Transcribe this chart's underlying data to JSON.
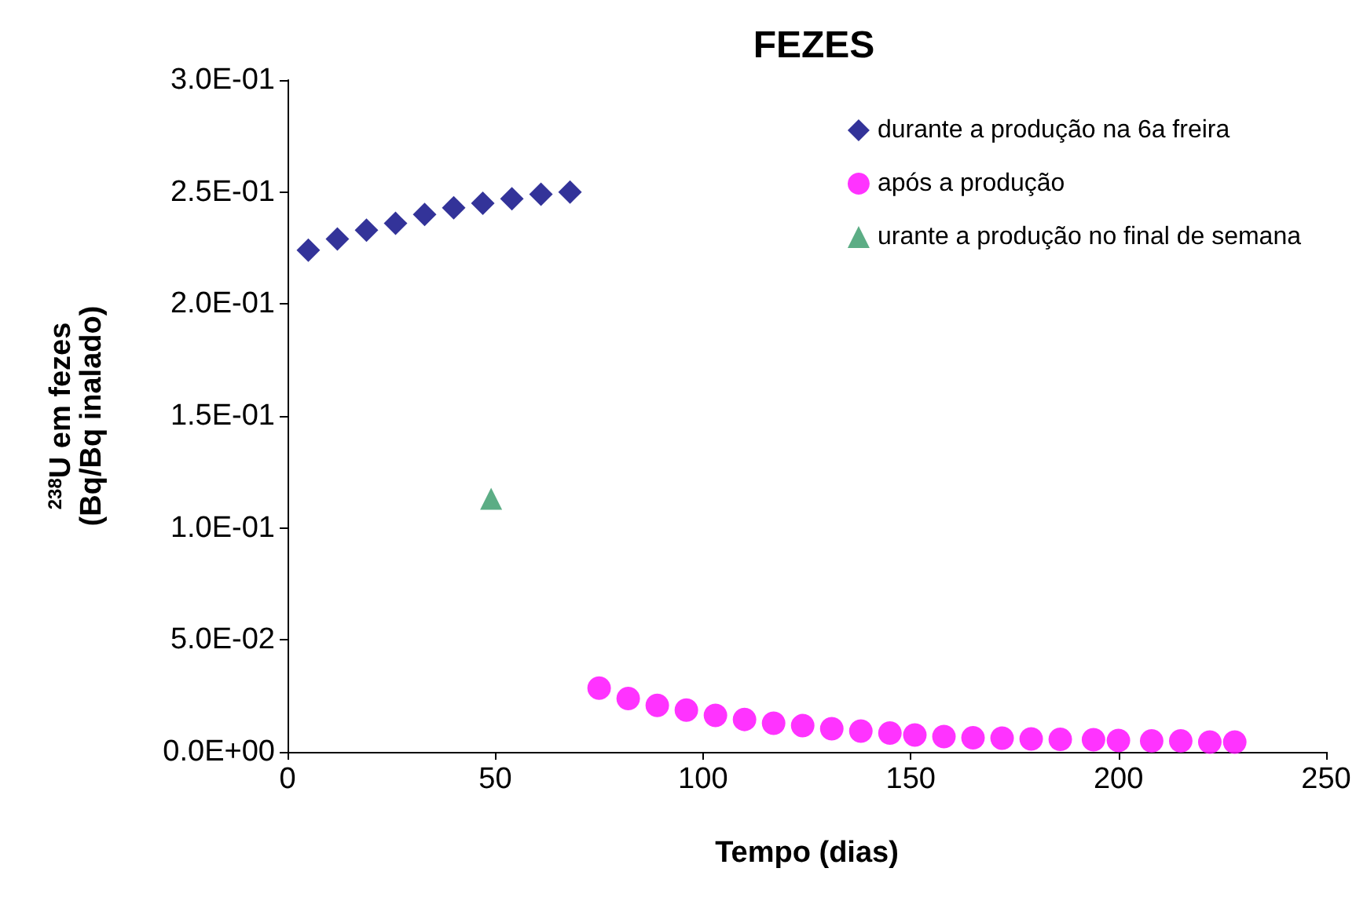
{
  "chart_data": {
    "type": "scatter",
    "title": "FEZES",
    "xlabel": "Tempo (dias)",
    "ylabel": "$^{238}$U em fezes\n(Bq/Bq inalado)",
    "xlim": [
      0,
      250
    ],
    "xticks": [
      0,
      50,
      100,
      150,
      200,
      250
    ],
    "ylim": [
      0,
      0.3
    ],
    "yticks": [
      {
        "value": 0,
        "label": "0.0E+00"
      },
      {
        "value": 0.05,
        "label": "5.0E-02"
      },
      {
        "value": 0.1,
        "label": "1.0E-01"
      },
      {
        "value": 0.15,
        "label": "1.5E-01"
      },
      {
        "value": 0.2,
        "label": "2.0E-01"
      },
      {
        "value": 0.25,
        "label": "2.5E-01"
      },
      {
        "value": 0.3,
        "label": "3.0E-01"
      }
    ],
    "grid": false,
    "legend": "top right",
    "series": [
      {
        "name": "durante a produção na 6a freira",
        "color": "#000080",
        "marker": "diamond",
        "x": [
          5,
          12,
          19,
          26,
          33,
          40,
          47,
          54,
          61,
          68
        ],
        "values": [
          0.224,
          0.229,
          0.233,
          0.236,
          0.24,
          0.243,
          0.245,
          0.247,
          0.249,
          0.25
        ]
      },
      {
        "name": "após a produção",
        "color": "#ff00ff",
        "marker": "circle",
        "x": [
          75,
          82,
          89,
          96,
          103,
          110,
          117,
          124,
          131,
          138,
          145,
          151,
          158,
          165,
          172,
          179,
          186,
          194,
          200,
          208,
          215,
          222,
          228
        ],
        "values": [
          0.0285,
          0.0238,
          0.0208,
          0.0187,
          0.0163,
          0.0145,
          0.0128,
          0.0117,
          0.0103,
          0.0093,
          0.0084,
          0.0075,
          0.0068,
          0.0063,
          0.0061,
          0.0058,
          0.0056,
          0.0054,
          0.0051,
          0.0049,
          0.0049,
          0.0044,
          0.0044
        ]
      },
      {
        "name": "urante a produção no final de semana",
        "color": "#339966",
        "marker": "triangle",
        "x": [
          49
        ],
        "values": [
          0.113
        ]
      }
    ]
  }
}
